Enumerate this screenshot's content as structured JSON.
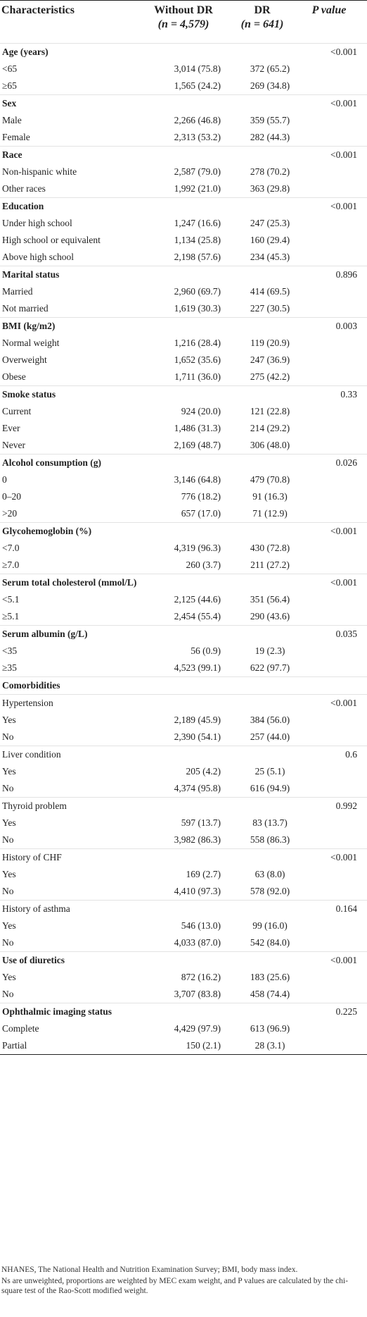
{
  "header": {
    "characteristics": "Characteristics",
    "without_dr": "Without DR",
    "without_dr_n": "(n = 4,579)",
    "dr": "DR",
    "dr_n": "(n = 641)",
    "p_value": "P value"
  },
  "rows": [
    {
      "label": "Age (years)",
      "group": true,
      "p": "<0.001"
    },
    {
      "label": "<65",
      "a": "3,014 (75.8)",
      "b": "372 (65.2)"
    },
    {
      "label": "≥65",
      "a": "1,565 (24.2)",
      "b": "269 (34.8)"
    },
    {
      "label": "Sex",
      "group": true,
      "p": "<0.001"
    },
    {
      "label": "Male",
      "a": "2,266 (46.8)",
      "b": "359 (55.7)"
    },
    {
      "label": "Female",
      "a": "2,313 (53.2)",
      "b": "282 (44.3)"
    },
    {
      "label": "Race",
      "group": true,
      "p": "<0.001"
    },
    {
      "label": "Non-hispanic white",
      "a": "2,587 (79.0)",
      "b": "278 (70.2)"
    },
    {
      "label": "Other races",
      "a": "1,992 (21.0)",
      "b": "363 (29.8)"
    },
    {
      "label": "Education",
      "group": true,
      "p": "<0.001"
    },
    {
      "label": "Under high school",
      "a": "1,247 (16.6)",
      "b": "247 (25.3)"
    },
    {
      "label": "High school or equivalent",
      "a": "1,134 (25.8)",
      "b": "160 (29.4)"
    },
    {
      "label": "Above high school",
      "a": "2,198 (57.6)",
      "b": "234 (45.3)"
    },
    {
      "label": "Marital status",
      "group": true,
      "p": "0.896"
    },
    {
      "label": "Married",
      "a": "2,960 (69.7)",
      "b": "414 (69.5)"
    },
    {
      "label": "Not married",
      "a": "1,619 (30.3)",
      "b": "227 (30.5)"
    },
    {
      "label": "BMI (kg/m2)",
      "group": true,
      "p": "0.003"
    },
    {
      "label": "Normal weight",
      "a": "1,216 (28.4)",
      "b": "119 (20.9)"
    },
    {
      "label": "Overweight",
      "a": "1,652 (35.6)",
      "b": "247 (36.9)"
    },
    {
      "label": "Obese",
      "a": "1,711 (36.0)",
      "b": "275 (42.2)"
    },
    {
      "label": "Smoke status",
      "group": true,
      "p": "0.33"
    },
    {
      "label": "Current",
      "a": "924 (20.0)",
      "b": "121 (22.8)"
    },
    {
      "label": "Ever",
      "a": "1,486 (31.3)",
      "b": "214 (29.2)"
    },
    {
      "label": "Never",
      "a": "2,169 (48.7)",
      "b": "306 (48.0)"
    },
    {
      "label": "Alcohol consumption (g)",
      "group": true,
      "p": "0.026"
    },
    {
      "label": "0",
      "a": "3,146 (64.8)",
      "b": "479 (70.8)"
    },
    {
      "label": "0–20",
      "a": "776 (18.2)",
      "b": "91 (16.3)"
    },
    {
      "label": ">20",
      "a": "657 (17.0)",
      "b": "71 (12.9)"
    },
    {
      "label": "Glycohemoglobin (%)",
      "group": true,
      "p": "<0.001"
    },
    {
      "label": "<7.0",
      "a": "4,319 (96.3)",
      "b": "430 (72.8)"
    },
    {
      "label": "≥7.0",
      "a": "260 (3.7)",
      "b": "211 (27.2)"
    },
    {
      "label": "Serum total cholesterol (mmol/L)",
      "group": true,
      "p": "<0.001"
    },
    {
      "label": "<5.1",
      "a": "2,125 (44.6)",
      "b": "351 (56.4)"
    },
    {
      "label": "≥5.1",
      "a": "2,454 (55.4)",
      "b": "290 (43.6)"
    },
    {
      "label": "Serum albumin (g/L)",
      "group": true,
      "p": "0.035"
    },
    {
      "label": "<35",
      "a": "56 (0.9)",
      "b": "19 (2.3)"
    },
    {
      "label": "≥35",
      "a": "4,523 (99.1)",
      "b": "622 (97.7)"
    },
    {
      "label": "Comorbidities",
      "group": true,
      "p": ""
    },
    {
      "label": "Hypertension",
      "sub": true,
      "p": "<0.001"
    },
    {
      "label": "Yes",
      "a": "2,189 (45.9)",
      "b": "384 (56.0)"
    },
    {
      "label": "No",
      "a": "2,390 (54.1)",
      "b": "257 (44.0)"
    },
    {
      "label": "Liver condition",
      "sub": true,
      "p": "0.6"
    },
    {
      "label": "Yes",
      "a": "205 (4.2)",
      "b": "25 (5.1)"
    },
    {
      "label": "No",
      "a": "4,374 (95.8)",
      "b": "616 (94.9)"
    },
    {
      "label": "Thyroid problem",
      "sub": true,
      "p": "0.992"
    },
    {
      "label": "Yes",
      "a": "597 (13.7)",
      "b": "83 (13.7)"
    },
    {
      "label": "No",
      "a": "3,982 (86.3)",
      "b": "558 (86.3)"
    },
    {
      "label": "History of CHF",
      "sub": true,
      "p": "<0.001"
    },
    {
      "label": "Yes",
      "a": "169 (2.7)",
      "b": "63 (8.0)"
    },
    {
      "label": "No",
      "a": "4,410 (97.3)",
      "b": "578 (92.0)"
    },
    {
      "label": "History of asthma",
      "sub": true,
      "p": "0.164"
    },
    {
      "label": "Yes",
      "a": "546 (13.0)",
      "b": "99 (16.0)"
    },
    {
      "label": "No",
      "a": "4,033 (87.0)",
      "b": "542 (84.0)"
    },
    {
      "label": "Use of diuretics",
      "group": true,
      "p": "<0.001"
    },
    {
      "label": "Yes",
      "a": "872 (16.2)",
      "b": "183 (25.6)"
    },
    {
      "label": "No",
      "a": "3,707 (83.8)",
      "b": "458 (74.4)"
    },
    {
      "label": "Ophthalmic imaging status",
      "group": true,
      "p": "0.225"
    },
    {
      "label": "Complete",
      "a": "4,429 (97.9)",
      "b": "613 (96.9)"
    },
    {
      "label": "Partial",
      "a": "150 (2.1)",
      "b": "28 (3.1)"
    }
  ],
  "footnotes": [
    "NHANES, The National Health and Nutrition Examination Survey; BMI, body mass index.",
    "Ns are unweighted, proportions are weighted by MEC exam weight, and P values are calculated by the chi-square test of the Rao-Scott modified weight."
  ]
}
